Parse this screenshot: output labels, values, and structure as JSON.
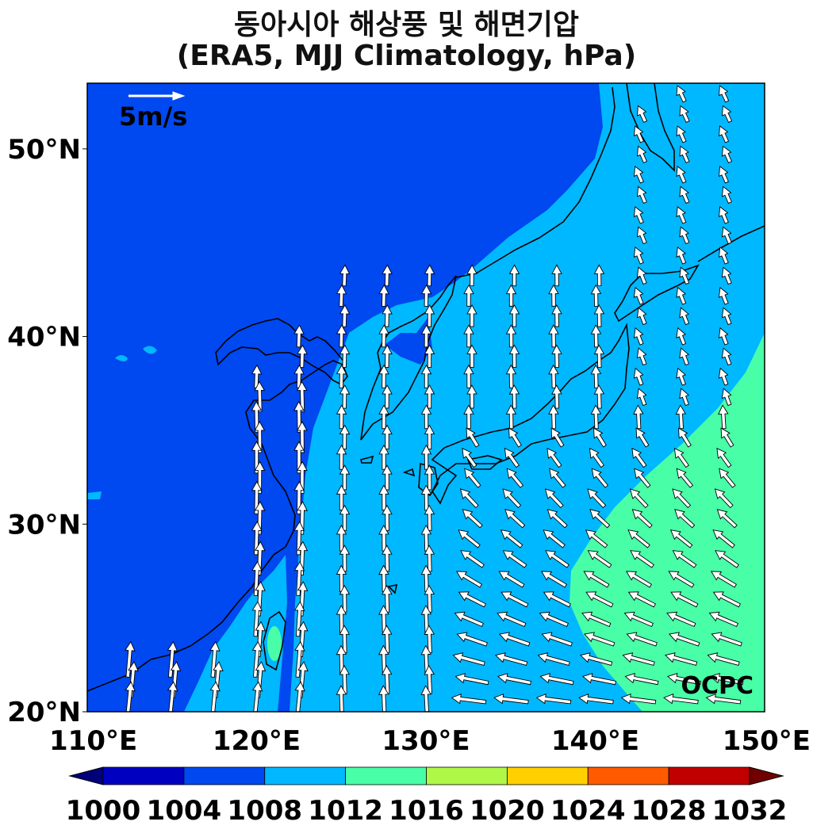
{
  "title": {
    "line1": "동아시아 해상풍 및 해면기압",
    "line2": "(ERA5, MJJ Climatology, hPa)"
  },
  "map": {
    "lon_range": [
      110,
      150
    ],
    "lat_range": [
      20,
      53.5
    ],
    "lon_ticks": [
      "110°E",
      "120°E",
      "130°E",
      "140°E",
      "150°E"
    ],
    "lat_ticks": [
      "20°N",
      "30°N",
      "40°N",
      "50°N"
    ],
    "reference_vector_label": "5m/s",
    "credit": "OCPC"
  },
  "colorbar": {
    "levels": [
      "1000",
      "1004",
      "1008",
      "1012",
      "1016",
      "1020",
      "1024",
      "1028",
      "1032"
    ],
    "colors": [
      "#0000c0",
      "#0048f0",
      "#00b8ff",
      "#48ffa8",
      "#b0f848",
      "#ffcf00",
      "#ff5a00",
      "#c00000"
    ],
    "under_color": "#00007a",
    "over_color": "#700000"
  },
  "colors": {
    "coastline": "#000000",
    "arrow_fill": "#ffffff",
    "arrow_edge": "#000000"
  }
}
